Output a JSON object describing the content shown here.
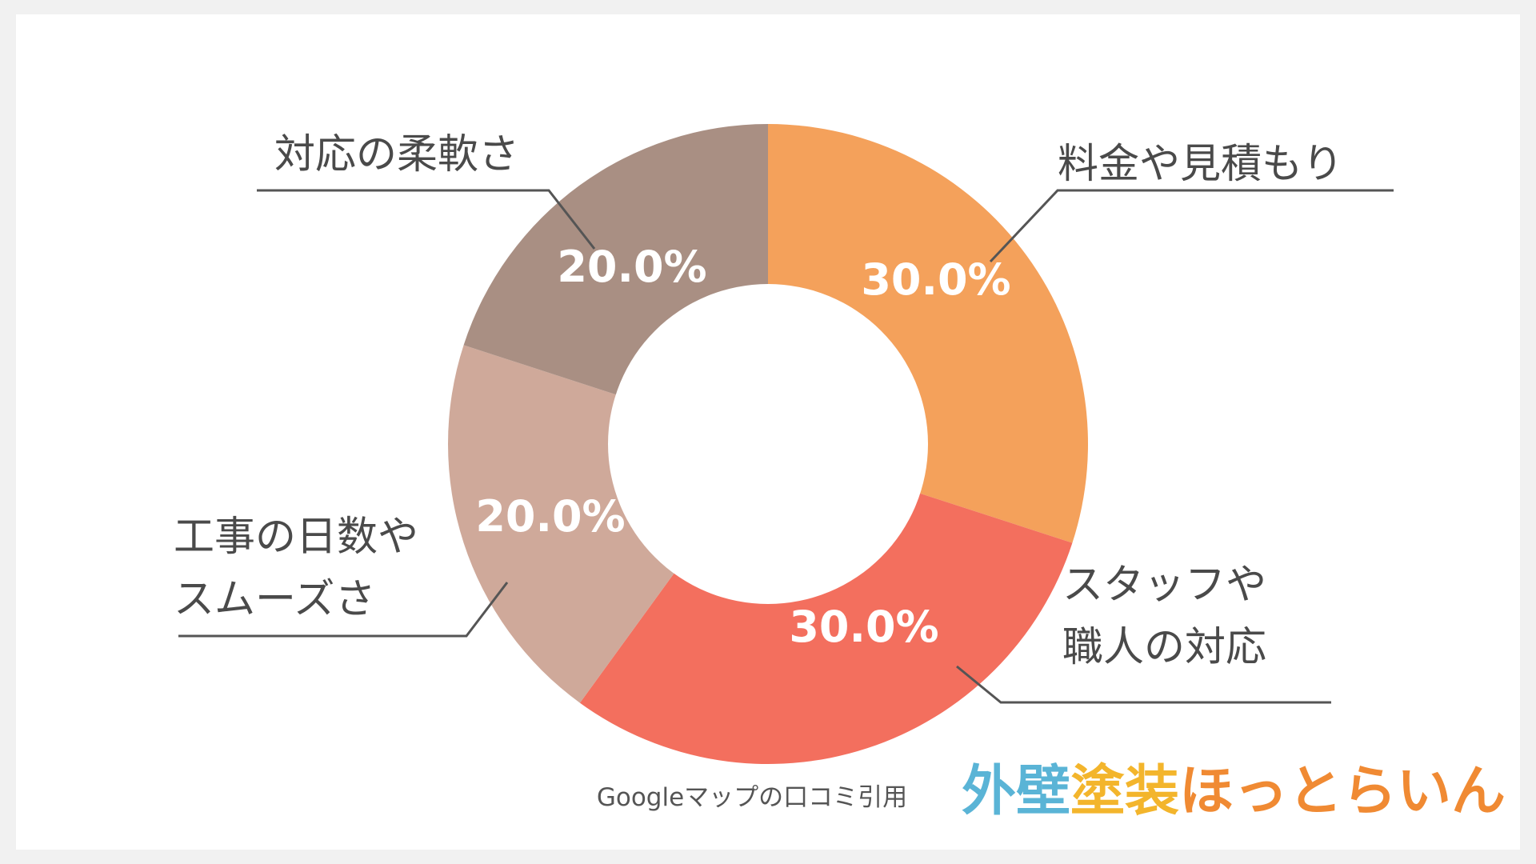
{
  "chart_data": {
    "type": "pie",
    "donut": true,
    "slices": [
      {
        "label_lines": [
          "料金や見積もり"
        ],
        "value": 30.0,
        "value_label": "30.0%",
        "color": "#f4a15b"
      },
      {
        "label_lines": [
          "スタッフや",
          "職人の対応"
        ],
        "value": 30.0,
        "value_label": "30.0%",
        "color": "#f36f5e"
      },
      {
        "label_lines": [
          "工事の日数や",
          "スムーズさ"
        ],
        "value": 20.0,
        "value_label": "20.0%",
        "color": "#cfa99a"
      },
      {
        "label_lines": [
          "対応の柔軟さ"
        ],
        "value": 20.0,
        "value_label": "20.0%",
        "color": "#a98f83"
      }
    ],
    "source_note": "Googleマップの口コミ引用",
    "legend": "none"
  },
  "logo": {
    "parts": [
      {
        "text": "外壁",
        "color": "#5ab4d6"
      },
      {
        "text": "塗装",
        "color": "#f3b52c"
      },
      {
        "text": "ほっとらいん",
        "color": "#f08a33"
      }
    ]
  }
}
